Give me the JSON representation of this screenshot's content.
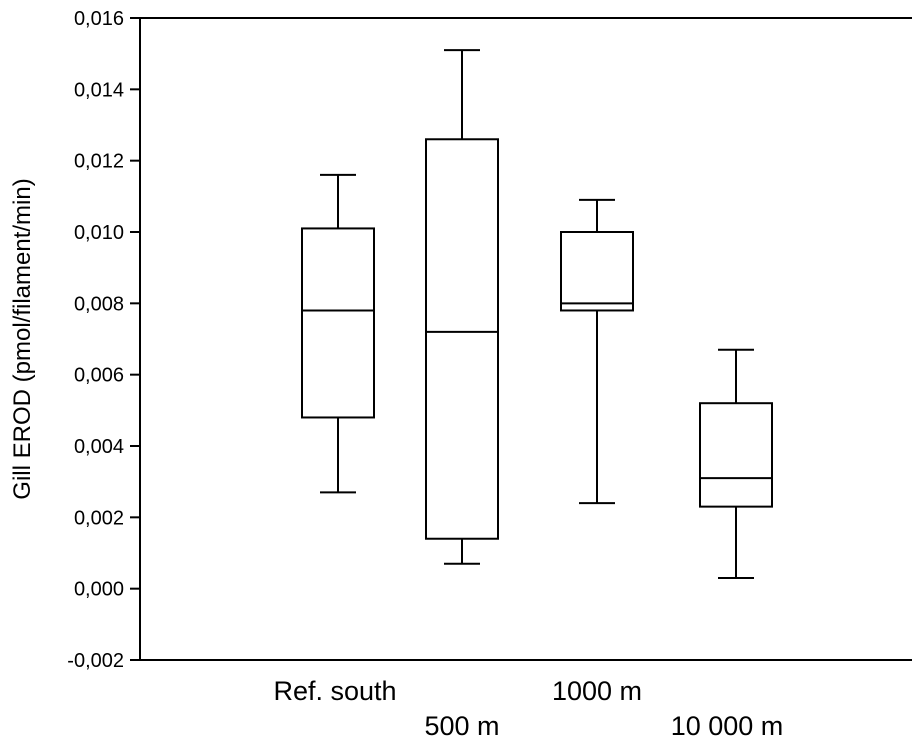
{
  "chart_data": {
    "type": "boxplot",
    "title": "",
    "xlabel": "",
    "ylabel": "Gill EROD (pmol/filament/min)",
    "ylim": [
      -0.002,
      0.016
    ],
    "yticks": [
      "-0,002",
      "0,000",
      "0,002",
      "0,004",
      "0,006",
      "0,008",
      "0,010",
      "0,012",
      "0,014",
      "0,016"
    ],
    "categories": [
      "Ref. south",
      "500 m",
      "1000 m",
      "10 000 m"
    ],
    "boxes": [
      {
        "category": "Ref. south",
        "whisker_low": 0.0027,
        "q1": 0.0048,
        "median": 0.0078,
        "q3": 0.0101,
        "whisker_high": 0.0116
      },
      {
        "category": "500 m",
        "whisker_low": 0.0007,
        "q1": 0.0014,
        "median": 0.0072,
        "q3": 0.0126,
        "whisker_high": 0.0151
      },
      {
        "category": "1000 m",
        "whisker_low": 0.0024,
        "q1": 0.0078,
        "median": 0.008,
        "q3": 0.01,
        "whisker_high": 0.0109
      },
      {
        "category": "10 000 m",
        "whisker_low": 0.0003,
        "q1": 0.0023,
        "median": 0.0031,
        "q3": 0.0052,
        "whisker_high": 0.0067
      }
    ],
    "grid": false,
    "frame": "left-top-bottom"
  }
}
